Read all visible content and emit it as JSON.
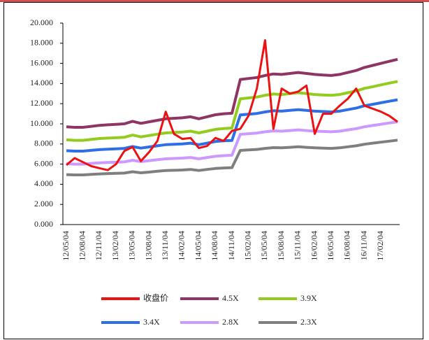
{
  "chart_data": {
    "type": "line",
    "categories": [
      "12/05/04",
      null,
      "12/08/04",
      null,
      "12/11/04",
      null,
      "13/02/04",
      null,
      "13/05/04",
      null,
      "13/08/04",
      null,
      "13/11/04",
      null,
      "14/02/04",
      null,
      "14/05/04",
      null,
      "14/08/04",
      null,
      "14/11/04",
      null,
      "15/02/04",
      null,
      "15/05/04",
      null,
      "15/08/04",
      null,
      "15/11/04",
      null,
      "16/02/04",
      null,
      "16/05/04",
      null,
      "16/08/04",
      null,
      "16/11/04",
      null,
      "17/02/04",
      null,
      null
    ],
    "series": [
      {
        "name": "收盘价",
        "color": "#ee1111",
        "values": [
          5.9,
          6.6,
          6.2,
          5.8,
          5.6,
          5.4,
          6.0,
          7.3,
          7.7,
          6.3,
          7.2,
          8.3,
          11.2,
          9.0,
          8.5,
          8.6,
          7.6,
          7.8,
          8.6,
          8.3,
          9.3,
          9.5,
          10.8,
          13.5,
          18.3,
          9.5,
          13.5,
          13.0,
          13.2,
          13.8,
          9.0,
          11.0,
          11.0,
          11.8,
          12.5,
          13.5,
          11.8,
          11.5,
          11.2,
          10.8,
          10.2
        ]
      },
      {
        "name": "4.5X",
        "color": "#8e3563",
        "values": [
          9.7,
          9.65,
          9.65,
          9.75,
          9.85,
          9.9,
          9.95,
          10.0,
          10.25,
          10.05,
          10.2,
          10.35,
          10.5,
          10.55,
          10.6,
          10.7,
          10.5,
          10.7,
          10.9,
          11.0,
          11.05,
          14.4,
          14.5,
          14.6,
          14.8,
          14.95,
          14.9,
          15.0,
          15.1,
          15.0,
          14.9,
          14.85,
          14.8,
          14.9,
          15.1,
          15.3,
          15.6,
          15.8,
          16.0,
          16.2,
          16.4
        ]
      },
      {
        "name": "3.9X",
        "color": "#92cc1e",
        "values": [
          8.41,
          8.36,
          8.36,
          8.45,
          8.54,
          8.58,
          8.62,
          8.67,
          8.88,
          8.71,
          8.84,
          8.97,
          9.1,
          9.14,
          9.19,
          9.27,
          9.1,
          9.27,
          9.45,
          9.53,
          9.58,
          12.48,
          12.57,
          12.65,
          12.83,
          12.96,
          12.91,
          13.0,
          13.09,
          13.0,
          12.91,
          12.87,
          12.83,
          12.91,
          13.09,
          13.26,
          13.52,
          13.69,
          13.87,
          14.04,
          14.21
        ]
      },
      {
        "name": "3.4X",
        "color": "#2e6fe8",
        "values": [
          7.33,
          7.29,
          7.29,
          7.37,
          7.44,
          7.48,
          7.52,
          7.56,
          7.74,
          7.59,
          7.71,
          7.82,
          7.93,
          7.97,
          8.01,
          8.08,
          7.93,
          8.08,
          8.24,
          8.31,
          8.35,
          10.88,
          10.96,
          11.03,
          11.18,
          11.3,
          11.26,
          11.33,
          11.41,
          11.33,
          11.26,
          11.22,
          11.18,
          11.26,
          11.41,
          11.56,
          11.79,
          11.94,
          12.09,
          12.24,
          12.39
        ]
      },
      {
        "name": "2.8X",
        "color": "#cc99ff",
        "values": [
          6.04,
          6.0,
          6.0,
          6.07,
          6.13,
          6.16,
          6.19,
          6.22,
          6.38,
          6.25,
          6.35,
          6.44,
          6.53,
          6.56,
          6.6,
          6.66,
          6.53,
          6.66,
          6.78,
          6.84,
          6.88,
          8.96,
          9.02,
          9.08,
          9.21,
          9.3,
          9.27,
          9.33,
          9.4,
          9.33,
          9.27,
          9.24,
          9.21,
          9.27,
          9.4,
          9.52,
          9.71,
          9.83,
          9.96,
          10.08,
          10.2
        ]
      },
      {
        "name": "2.3X",
        "color": "#7f7f7f",
        "values": [
          4.96,
          4.93,
          4.93,
          4.98,
          5.03,
          5.06,
          5.09,
          5.11,
          5.24,
          5.14,
          5.21,
          5.29,
          5.37,
          5.39,
          5.42,
          5.47,
          5.37,
          5.47,
          5.57,
          5.62,
          5.65,
          7.36,
          7.41,
          7.46,
          7.56,
          7.64,
          7.62,
          7.67,
          7.72,
          7.67,
          7.62,
          7.59,
          7.56,
          7.62,
          7.72,
          7.82,
          7.97,
          8.08,
          8.18,
          8.28,
          8.38
        ]
      }
    ],
    "ylim": [
      0,
      20
    ],
    "yticks": [
      {
        "value": 0,
        "label": "0.000"
      },
      {
        "value": 2,
        "label": "2.000"
      },
      {
        "value": 4,
        "label": "4.000"
      },
      {
        "value": 6,
        "label": "6.000"
      },
      {
        "value": 8,
        "label": "8.000"
      },
      {
        "value": 10,
        "label": "10.000"
      },
      {
        "value": 12,
        "label": "12.000"
      },
      {
        "value": 14,
        "label": "14.000"
      },
      {
        "value": 16,
        "label": "16.000"
      },
      {
        "value": 18,
        "label": "18.000"
      },
      {
        "value": 20,
        "label": "20.000"
      }
    ],
    "grid": false,
    "legend": "bottom"
  }
}
